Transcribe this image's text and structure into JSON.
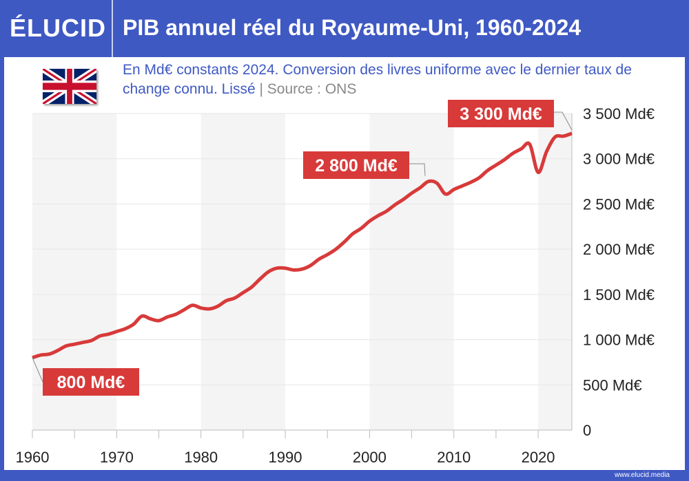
{
  "header": {
    "logo": "ÉLUCID",
    "title": "PIB annuel réel du Royaume-Uni, 1960-2024"
  },
  "subtitle": {
    "text": "En Md€ constants 2024. Conversion des livres uniforme avec le dernier taux de change connu. Lissé",
    "separator": "|",
    "source": "Source : ONS"
  },
  "footer": {
    "url": "www.elucid.media"
  },
  "colors": {
    "brand": "#3f59c3",
    "line": "#d83a3a",
    "band": "#f4f4f4"
  },
  "flag_icon": "uk-flag",
  "chart_data": {
    "type": "line",
    "title": "PIB annuel réel du Royaume-Uni, 1960-2024",
    "xlabel": "",
    "ylabel": "",
    "xlim": [
      1960,
      2024
    ],
    "ylim": [
      0,
      3500
    ],
    "x_ticks": [
      "1960",
      "1970",
      "1980",
      "1990",
      "2000",
      "2010",
      "2020"
    ],
    "y_ticks": [
      "0",
      "500 Md€",
      "1 000 Md€",
      "1 500 Md€",
      "2 000 Md€",
      "2 500 Md€",
      "3 000 Md€",
      "3 500 Md€"
    ],
    "y_axis_position": "right",
    "grid": true,
    "x": [
      1960,
      1961,
      1962,
      1963,
      1964,
      1965,
      1966,
      1967,
      1968,
      1969,
      1970,
      1971,
      1972,
      1973,
      1974,
      1975,
      1976,
      1977,
      1978,
      1979,
      1980,
      1981,
      1982,
      1983,
      1984,
      1985,
      1986,
      1987,
      1988,
      1989,
      1990,
      1991,
      1992,
      1993,
      1994,
      1995,
      1996,
      1997,
      1998,
      1999,
      2000,
      2001,
      2002,
      2003,
      2004,
      2005,
      2006,
      2007,
      2008,
      2009,
      2010,
      2011,
      2012,
      2013,
      2014,
      2015,
      2016,
      2017,
      2018,
      2019,
      2020,
      2021,
      2022,
      2023,
      2024
    ],
    "values": [
      800,
      830,
      840,
      880,
      930,
      950,
      970,
      990,
      1040,
      1060,
      1090,
      1120,
      1170,
      1260,
      1230,
      1210,
      1250,
      1280,
      1330,
      1380,
      1350,
      1340,
      1370,
      1430,
      1460,
      1520,
      1580,
      1670,
      1750,
      1790,
      1790,
      1770,
      1780,
      1820,
      1890,
      1940,
      2000,
      2080,
      2170,
      2230,
      2310,
      2370,
      2420,
      2490,
      2550,
      2620,
      2680,
      2750,
      2730,
      2610,
      2660,
      2700,
      2740,
      2790,
      2870,
      2930,
      2990,
      3060,
      3110,
      3160,
      2850,
      3080,
      3240,
      3250,
      3280
    ],
    "annotations": [
      {
        "x": 1960,
        "y": 800,
        "text": "800 Md€"
      },
      {
        "x": 2007,
        "y": 2750,
        "text": "2 800 Md€"
      },
      {
        "x": 2024,
        "y": 3280,
        "text": "3 300 Md€"
      }
    ]
  }
}
